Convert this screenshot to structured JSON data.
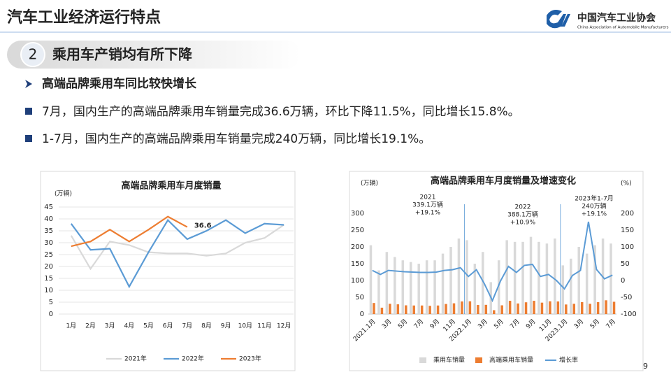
{
  "header": {
    "title": "汽车工业经济运行特点",
    "logo_cn": "中国汽车工业协会",
    "logo_en": "China Association of Automobile Manufacturers"
  },
  "section": {
    "number": "2",
    "title": "乘用车产销均有所下降"
  },
  "subheading": "高端品牌乘用车同比较快增长",
  "bullets": [
    "7月，国内生产的高端品牌乘用车销量完成36.6万辆，环比下降11.5%，同比增长15.8%。",
    "1-7月，国内生产的高端品牌乘用车销量完成240万辆，同比增长19.1%。"
  ],
  "page_number": "9",
  "chart_data": [
    {
      "type": "line",
      "title": "高端品牌乘用车月度销量",
      "y_unit": "(万辆)",
      "categories": [
        "1月",
        "2月",
        "3月",
        "4月",
        "5月",
        "6月",
        "7月",
        "8月",
        "9月",
        "10月",
        "11月",
        "12月"
      ],
      "series": [
        {
          "name": "2021年",
          "color": "#d9d9d9",
          "values": [
            33,
            19,
            30.5,
            29,
            26,
            25.5,
            25.5,
            24.5,
            25.5,
            30,
            32,
            37.5
          ]
        },
        {
          "name": "2022年",
          "color": "#5b9bd5",
          "values": [
            38,
            27,
            27.5,
            11.5,
            26,
            39.5,
            31.5,
            35,
            39.5,
            34,
            38,
            37.5
          ]
        },
        {
          "name": "2023年",
          "color": "#ed7d31",
          "values": [
            28.5,
            30.5,
            35.5,
            30.5,
            35.5,
            41,
            36.6,
            null,
            null,
            null,
            null,
            null
          ]
        }
      ],
      "ylim": [
        0,
        45
      ],
      "yticks": [
        0,
        5,
        10,
        15,
        20,
        25,
        30,
        35,
        40,
        45
      ],
      "grid": true,
      "legend": "bottom"
    },
    {
      "type": "combo",
      "title": "高端品牌乘用车月度销量及增速变化",
      "y_unit": "(万辆)",
      "y2_unit": "(%)",
      "categories": [
        "2021.1月",
        null,
        "3月",
        null,
        "5月",
        null,
        "7月",
        null,
        "9月",
        null,
        "11月",
        null,
        "2022.1月",
        null,
        "3月",
        null,
        "5月",
        null,
        "7月",
        null,
        "9月",
        null,
        "11月",
        null,
        "2023.1月",
        null,
        "3月",
        null,
        "5月",
        null,
        "7月"
      ],
      "series": [
        {
          "name": "乘用车销量",
          "type": "bar",
          "color": "#d9d9d9",
          "values": [
            205,
            130,
            185,
            170,
            160,
            155,
            150,
            160,
            160,
            180,
            200,
            225,
            220,
            150,
            185,
            95,
            160,
            220,
            215,
            215,
            230,
            215,
            210,
            225,
            145,
            165,
            200,
            180,
            205,
            225,
            210
          ]
        },
        {
          "name": "高端乘用车销量",
          "type": "bar",
          "color": "#ed7d31",
          "values": [
            33,
            19,
            30.5,
            29,
            26,
            25.5,
            25.5,
            24.5,
            25.5,
            30,
            32,
            37.5,
            38,
            27,
            27.5,
            11.5,
            26,
            39.5,
            31.5,
            35,
            39.5,
            34,
            38,
            37.5,
            28.5,
            30.5,
            35.5,
            30.5,
            35.5,
            41,
            36.6
          ]
        },
        {
          "name": "增长率",
          "type": "line",
          "axis": "y2",
          "color": "#5b9bd5",
          "values": [
            30,
            18,
            30,
            28,
            26,
            25,
            24,
            24,
            25,
            30,
            32,
            38,
            12,
            32,
            -10,
            -60,
            -2,
            42,
            24,
            45,
            48,
            12,
            18,
            0,
            -25,
            15,
            30,
            175,
            33,
            5,
            16
          ]
        }
      ],
      "annotations": [
        [
          "2021",
          "339.1万辆",
          "+19.1%"
        ],
        [
          "2022",
          "388.1万辆",
          "+10.9%"
        ],
        [
          "2023年1-7月",
          "240万辆",
          "+19.1%"
        ]
      ],
      "ylim": [
        0,
        300
      ],
      "yticks": [
        0,
        50,
        100,
        150,
        200,
        250,
        300
      ],
      "y2lim": [
        -100,
        200
      ],
      "y2ticks": [
        -100,
        -50,
        0,
        50,
        100,
        150,
        200
      ],
      "grid": false,
      "legend": "bottom"
    }
  ]
}
